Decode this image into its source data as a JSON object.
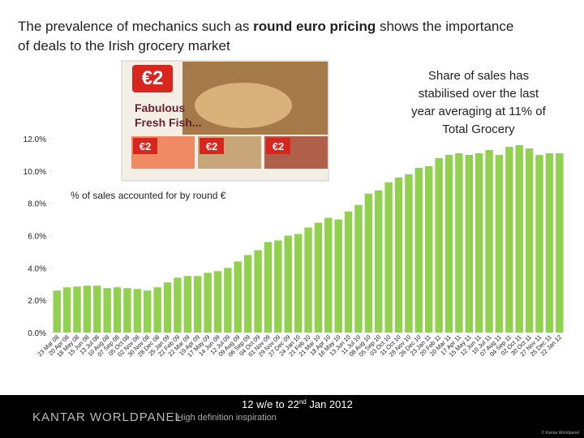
{
  "chart_data": {
    "type": "bar",
    "title_lines": [
      [
        "The prevalence of mechanics such as ",
        "round euro pricing",
        " shows the importance"
      ],
      [
        "of deals to the Irish grocery market"
      ]
    ],
    "annotation": [
      "Share of sales has",
      "stabilised over the last",
      "year averaging at 11% of",
      "Total Grocery"
    ],
    "series_label": "% of sales accounted for by round €",
    "advert": {
      "price": "€2",
      "headline": [
        "Fabulous",
        "Fresh Fish..."
      ],
      "small_price": "€2"
    },
    "period": [
      "12 w/e to 22",
      "nd",
      " Jan 2012"
    ],
    "brand": "KANTAR WORLDPANEL",
    "tagline": "High definition inspiration",
    "copyright": "© Kantar Worldpanel",
    "color": "#92d050",
    "categories": [
      "23 Mar 08",
      "20 Apr 08",
      "18 May 08",
      "15 Jun 08",
      "13 Jul 08",
      "10 Aug 08",
      "07 Sep 08",
      "05 Oct 08",
      "02 Nov 08",
      "30 Nov 08",
      "28 Dec 08",
      "25 Jan 09",
      "22 Feb 09",
      "22 Mar 09",
      "19 Apr 09",
      "17 May 09",
      "14 Jun 09",
      "12 Jul 09",
      "09 Aug 09",
      "06 Sep 09",
      "04 Oct 09",
      "01 Nov 09",
      "29 Nov 09",
      "27 Dec 09",
      "24 Jan 10",
      "21 Feb 10",
      "21 Mar 10",
      "18 Apr 10",
      "16 May 10",
      "13 Jun 10",
      "11 Jul 10",
      "08 Aug 10",
      "05 Sep 10",
      "03 Oct 10",
      "31 Oct 10",
      "28 Nov 10",
      "26 Dec 10",
      "23 Jan 11",
      "20 Feb 11",
      "20 Mar 11",
      "17 Apr 11",
      "15 May 11",
      "12 Jun 11",
      "10 Jul 11",
      "07 Aug 11",
      "04 Sep 11",
      "02 Oct 11",
      "30 Oct 11",
      "27 Nov 11",
      "25 Dec 11",
      "22 Jan 12"
    ],
    "values": [
      2.6,
      2.8,
      2.85,
      2.9,
      2.9,
      2.75,
      2.8,
      2.75,
      2.7,
      2.6,
      2.8,
      3.1,
      3.4,
      3.5,
      3.5,
      3.7,
      3.8,
      4.0,
      4.4,
      4.8,
      5.1,
      5.6,
      5.7,
      6.0,
      6.1,
      6.5,
      6.8,
      7.1,
      7.0,
      7.5,
      7.9,
      8.6,
      8.8,
      9.3,
      9.6,
      9.8,
      10.2,
      10.3,
      10.8,
      11.0,
      11.1,
      11.0,
      11.1,
      11.3,
      11.0,
      11.5,
      11.6,
      11.4,
      11.0,
      11.1,
      11.1
    ],
    "ylim": [
      0,
      12
    ],
    "yticks": [
      {
        "value": 0,
        "label": "0.0%"
      },
      {
        "value": 2,
        "label": "2.0%"
      },
      {
        "value": 4,
        "label": "4.0%"
      },
      {
        "value": 6,
        "label": "6.0%"
      },
      {
        "value": 8,
        "label": "8.0%"
      },
      {
        "value": 10,
        "label": "10.0%"
      },
      {
        "value": 12,
        "label": "12.0%"
      }
    ]
  }
}
